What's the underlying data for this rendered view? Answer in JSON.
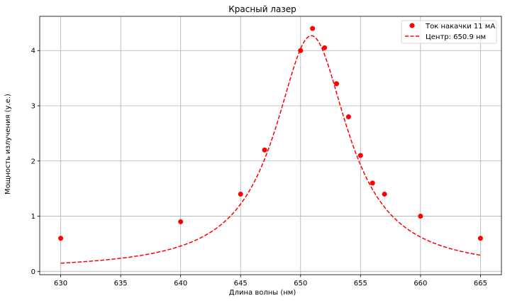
{
  "chart_data": {
    "type": "scatter",
    "title": "Красный лазер",
    "xlabel": "Длина волны (нм)",
    "ylabel": "Мощность излучения (у.е.)",
    "xlim": [
      628.25,
      666.75
    ],
    "ylim": [
      -0.06,
      4.62
    ],
    "xticks": [
      630,
      635,
      640,
      645,
      650,
      655,
      660,
      665
    ],
    "yticks": [
      0,
      1,
      2,
      3,
      4
    ],
    "grid": true,
    "legend_position": "top-right",
    "series": [
      {
        "name": "Ток накачки 11 мА",
        "kind": "scatter",
        "color": "#ff0000",
        "x": [
          630,
          640,
          645,
          647,
          650,
          651,
          652,
          653,
          654,
          655,
          656,
          657,
          660,
          665
        ],
        "y": [
          0.6,
          0.9,
          1.4,
          2.2,
          4.0,
          4.4,
          4.05,
          3.4,
          2.8,
          2.1,
          1.6,
          1.4,
          1.0,
          0.6
        ]
      },
      {
        "name": "Центр: 650.9 нм",
        "kind": "line",
        "style": "dashed",
        "color": "#ff0000",
        "model": "lorentzian",
        "x0": 650.9,
        "amplitude": 4.25,
        "hwhm": 3.7,
        "offset": 0.02,
        "x_range": [
          630,
          665
        ]
      }
    ]
  }
}
